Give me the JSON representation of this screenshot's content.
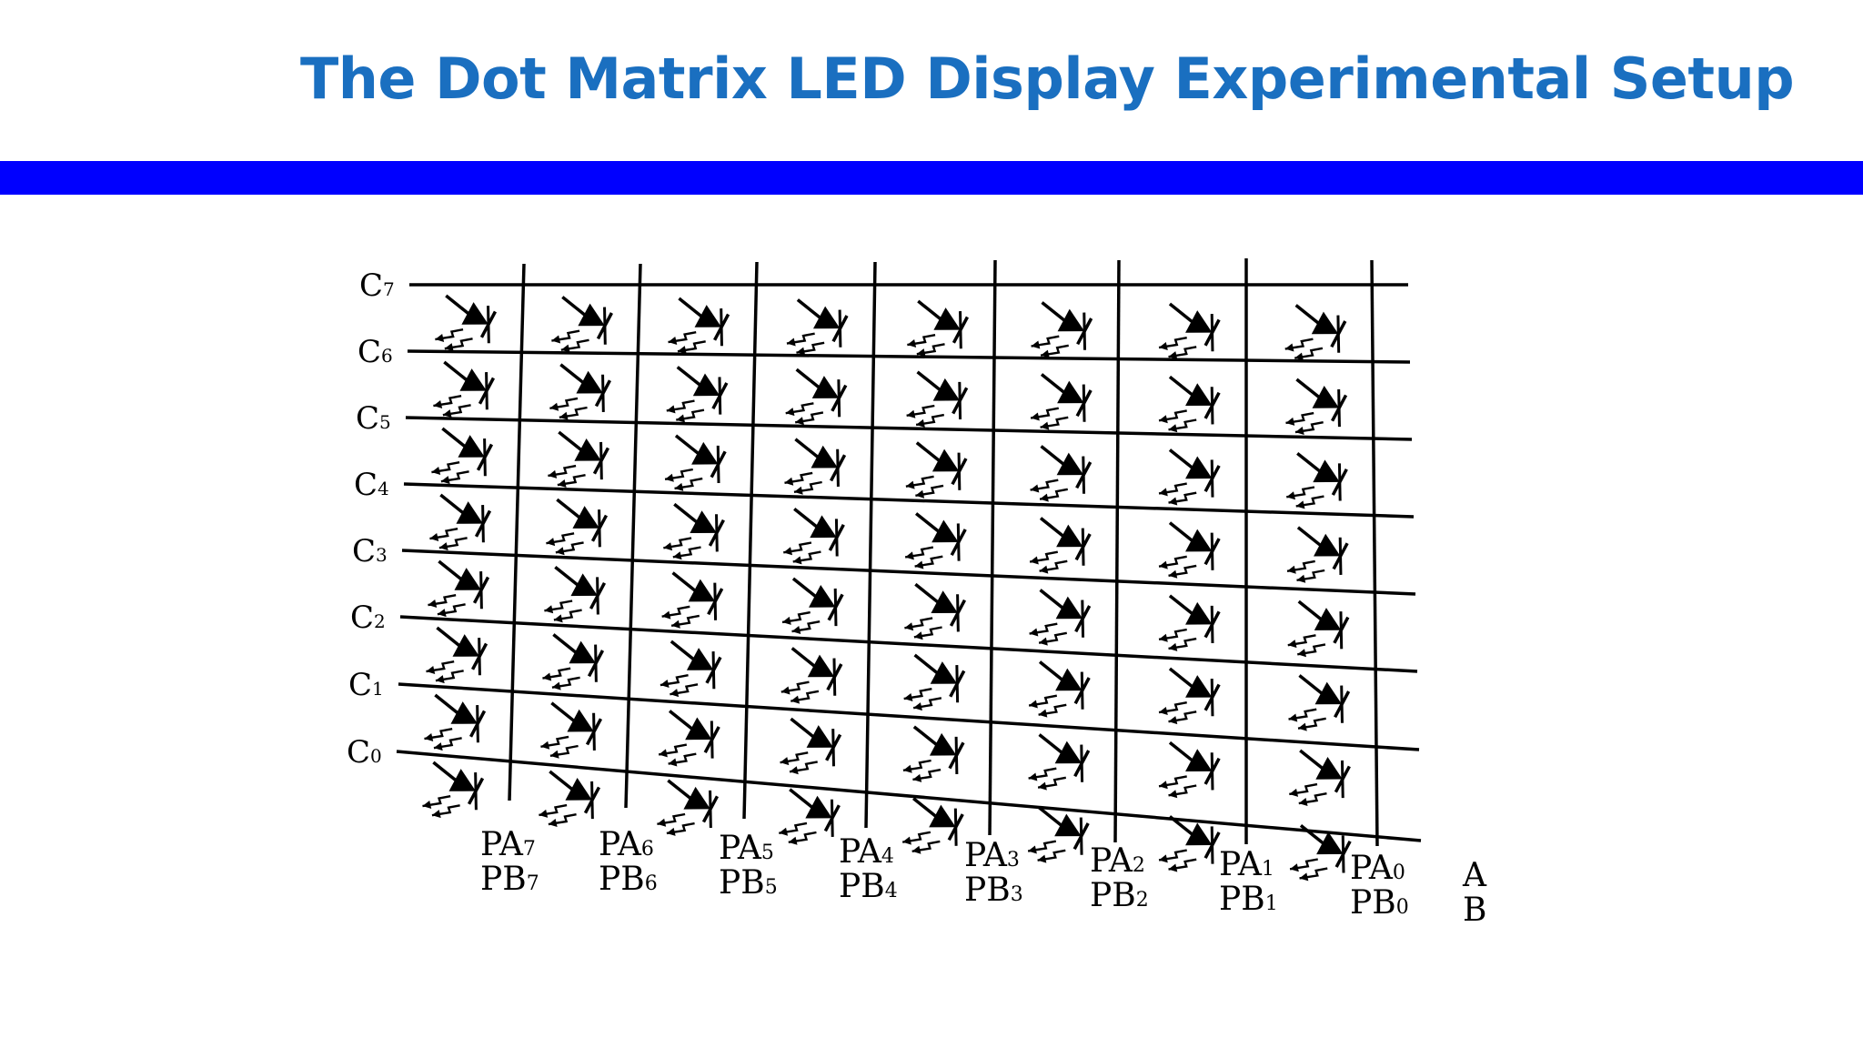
{
  "title": "The Dot Matrix LED Display Experimental Setup",
  "colors": {
    "title": "#1a6fc0",
    "bar": "#0000ff",
    "ink": "#000000"
  },
  "diagram": {
    "row_labels": [
      {
        "base": "C",
        "sub": "7"
      },
      {
        "base": "C",
        "sub": "6"
      },
      {
        "base": "C",
        "sub": "5"
      },
      {
        "base": "C",
        "sub": "4"
      },
      {
        "base": "C",
        "sub": "3"
      },
      {
        "base": "C",
        "sub": "2"
      },
      {
        "base": "C",
        "sub": "1"
      },
      {
        "base": "C",
        "sub": "0"
      }
    ],
    "column_labels": [
      {
        "a": "PA",
        "a_sub": "7",
        "b": "PB",
        "b_sub": "7"
      },
      {
        "a": "PA",
        "a_sub": "6",
        "b": "PB",
        "b_sub": "6"
      },
      {
        "a": "PA",
        "a_sub": "5",
        "b": "PB",
        "b_sub": "5"
      },
      {
        "a": "PA",
        "a_sub": "4",
        "b": "PB",
        "b_sub": "4"
      },
      {
        "a": "PA",
        "a_sub": "3",
        "b": "PB",
        "b_sub": "3"
      },
      {
        "a": "PA",
        "a_sub": "2",
        "b": "PB",
        "b_sub": "2"
      },
      {
        "a": "PA",
        "a_sub": "1",
        "b": "PB",
        "b_sub": "1"
      },
      {
        "a": "PA",
        "a_sub": "0",
        "b": "PB",
        "b_sub": "0"
      }
    ],
    "port_labels": [
      "A",
      "B"
    ],
    "led_icon": "led-diode-icon"
  }
}
